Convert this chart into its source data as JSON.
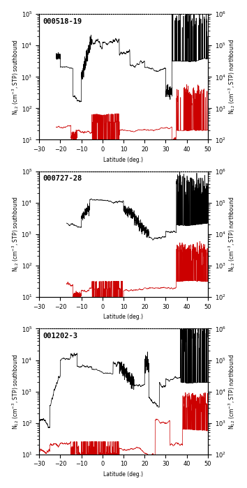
{
  "panels": [
    {
      "title": "000518-19",
      "xlim": [
        -30,
        50
      ],
      "ylim_left": [
        10,
        100000
      ],
      "ylim_right": [
        100,
        1000000
      ],
      "ylabel_left": "N$_{12}$ (cm$^{-3}$, STP) southbound",
      "ylabel_right": "N$_{12}$ (cm$^{-3}$, STP) northbound",
      "has_xlabel": true,
      "sb_start_lat": -22,
      "nb_start_lat": -22
    },
    {
      "title": "000727-28",
      "xlim": [
        -30,
        50
      ],
      "ylim_left": [
        10,
        100000
      ],
      "ylim_right": [
        100,
        1000000
      ],
      "ylabel_left": "N$_{12}$ (cm$^{-3}$, STP) southbound",
      "ylabel_right": "N$_{12}$ (cm$^{-3}$, STP) northbound",
      "has_xlabel": true,
      "sb_start_lat": -17,
      "nb_start_lat": -17
    },
    {
      "title": "001202-3",
      "xlim": [
        -30,
        50
      ],
      "ylim_left": [
        10,
        100000
      ],
      "ylim_right": [
        100,
        1000000
      ],
      "ylabel_left": "N$_{12}$ (cm$^{-3}$, STP) southbound",
      "ylabel_right": "N$_{12}$ (cm$^{-3}$, STP) northbound",
      "has_xlabel": true,
      "sb_start_lat": -30,
      "nb_start_lat": -30
    }
  ],
  "xlabel": "Latitude (deg.)",
  "black_color": "#000000",
  "red_color": "#cc0000",
  "bg_color": "#ffffff",
  "linewidth": 0.5,
  "fontsize_title": 7.5,
  "fontsize_label": 5.5,
  "fontsize_tick": 6,
  "xticks": [
    -30,
    -20,
    -10,
    0,
    10,
    20,
    30,
    40,
    50
  ]
}
